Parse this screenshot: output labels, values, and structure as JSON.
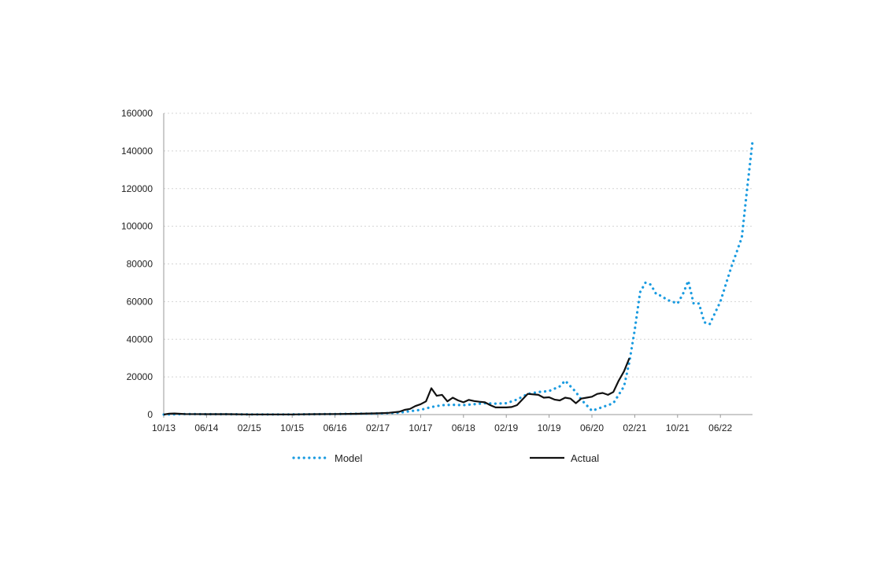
{
  "chart_data": {
    "type": "line",
    "x_ticks": [
      "10/13",
      "06/14",
      "02/15",
      "10/15",
      "06/16",
      "02/17",
      "10/17",
      "06/18",
      "02/19",
      "10/19",
      "06/20",
      "02/21",
      "10/21",
      "06/22"
    ],
    "ylim": [
      0,
      160000
    ],
    "y_ticks": [
      0,
      20000,
      40000,
      60000,
      80000,
      100000,
      120000,
      140000,
      160000
    ],
    "grid": "horizontal-dotted",
    "legend_position": "bottom",
    "series": [
      {
        "name": "Model",
        "color": "#1a9be0",
        "style": "dotted",
        "points": [
          [
            "10/13",
            0
          ],
          [
            "02/14",
            300
          ],
          [
            "06/14",
            200
          ],
          [
            "10/14",
            200
          ],
          [
            "02/15",
            100
          ],
          [
            "06/15",
            100
          ],
          [
            "10/15",
            100
          ],
          [
            "02/16",
            200
          ],
          [
            "06/16",
            300
          ],
          [
            "10/16",
            400
          ],
          [
            "02/17",
            600
          ],
          [
            "06/17",
            1000
          ],
          [
            "08/17",
            1800
          ],
          [
            "10/17",
            2500
          ],
          [
            "12/17",
            4000
          ],
          [
            "02/18",
            5000
          ],
          [
            "04/18",
            5200
          ],
          [
            "06/18",
            5000
          ],
          [
            "08/18",
            5500
          ],
          [
            "10/18",
            6000
          ],
          [
            "12/18",
            5800
          ],
          [
            "02/19",
            6000
          ],
          [
            "04/19",
            8000
          ],
          [
            "06/19",
            11000
          ],
          [
            "08/19",
            12000
          ],
          [
            "10/19",
            12500
          ],
          [
            "12/19",
            15000
          ],
          [
            "01/20",
            18000
          ],
          [
            "03/20",
            12000
          ],
          [
            "04/20",
            8000
          ],
          [
            "06/20",
            2000
          ],
          [
            "08/20",
            4000
          ],
          [
            "10/20",
            6000
          ],
          [
            "12/20",
            15000
          ],
          [
            "01/21",
            28000
          ],
          [
            "02/21",
            45000
          ],
          [
            "03/21",
            65000
          ],
          [
            "04/21",
            70000
          ],
          [
            "05/21",
            69000
          ],
          [
            "06/21",
            64000
          ],
          [
            "07/21",
            63000
          ],
          [
            "08/21",
            61000
          ],
          [
            "09/21",
            60000
          ],
          [
            "10/21",
            59000
          ],
          [
            "11/21",
            64000
          ],
          [
            "12/21",
            71000
          ],
          [
            "01/22",
            59000
          ],
          [
            "02/22",
            59000
          ],
          [
            "03/22",
            49000
          ],
          [
            "04/22",
            48000
          ],
          [
            "06/22",
            60000
          ],
          [
            "08/22",
            78000
          ],
          [
            "10/22",
            94000
          ],
          [
            "11/22",
            120000
          ],
          [
            "12/22",
            145000
          ]
        ]
      },
      {
        "name": "Actual",
        "color": "#111111",
        "style": "solid",
        "points": [
          [
            "10/13",
            0
          ],
          [
            "11/13",
            500
          ],
          [
            "12/13",
            600
          ],
          [
            "02/14",
            300
          ],
          [
            "06/14",
            200
          ],
          [
            "10/14",
            200
          ],
          [
            "02/15",
            100
          ],
          [
            "06/15",
            100
          ],
          [
            "10/15",
            100
          ],
          [
            "02/16",
            200
          ],
          [
            "06/16",
            300
          ],
          [
            "10/16",
            400
          ],
          [
            "02/17",
            700
          ],
          [
            "04/17",
            900
          ],
          [
            "06/17",
            1500
          ],
          [
            "07/17",
            2500
          ],
          [
            "08/17",
            3000
          ],
          [
            "09/17",
            4500
          ],
          [
            "10/17",
            5500
          ],
          [
            "11/17",
            7000
          ],
          [
            "12/17",
            14000
          ],
          [
            "01/18",
            10000
          ],
          [
            "02/18",
            10500
          ],
          [
            "03/18",
            7000
          ],
          [
            "04/18",
            9000
          ],
          [
            "05/18",
            7500
          ],
          [
            "06/18",
            6500
          ],
          [
            "07/18",
            7800
          ],
          [
            "08/18",
            7200
          ],
          [
            "09/18",
            6800
          ],
          [
            "10/18",
            6500
          ],
          [
            "11/18",
            5000
          ],
          [
            "12/18",
            3800
          ],
          [
            "02/19",
            3800
          ],
          [
            "03/19",
            4000
          ],
          [
            "04/19",
            5000
          ],
          [
            "05/19",
            8000
          ],
          [
            "06/19",
            11000
          ],
          [
            "08/19",
            10500
          ],
          [
            "09/19",
            9000
          ],
          [
            "10/19",
            9200
          ],
          [
            "11/19",
            8000
          ],
          [
            "12/19",
            7500
          ],
          [
            "01/20",
            9000
          ],
          [
            "02/20",
            8500
          ],
          [
            "03/20",
            6000
          ],
          [
            "04/20",
            8500
          ],
          [
            "05/20",
            9000
          ],
          [
            "06/20",
            9500
          ],
          [
            "07/20",
            11000
          ],
          [
            "08/20",
            11500
          ],
          [
            "09/20",
            10500
          ],
          [
            "10/20",
            12000
          ],
          [
            "11/20",
            18000
          ],
          [
            "12/20",
            23000
          ],
          [
            "01/21",
            30000
          ]
        ]
      }
    ]
  }
}
